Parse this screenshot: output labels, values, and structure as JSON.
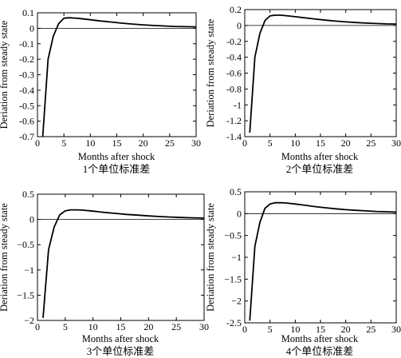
{
  "chart_data": [
    {
      "type": "line",
      "x": [
        1,
        2,
        3,
        4,
        5,
        6,
        7,
        8,
        10,
        12,
        14,
        16,
        18,
        20,
        22,
        24,
        26,
        28,
        30
      ],
      "series": [
        {
          "values": [
            -0.7,
            -0.2,
            -0.05,
            0.03,
            0.065,
            0.068,
            0.066,
            0.063,
            0.055,
            0.047,
            0.04,
            0.033,
            0.027,
            0.022,
            0.018,
            0.015,
            0.012,
            0.01,
            0.009
          ]
        }
      ],
      "xlim": [
        0,
        30
      ],
      "ylim": [
        -0.7,
        0.1
      ],
      "xticks": [
        0,
        5,
        10,
        15,
        20,
        25,
        30
      ],
      "yticks": [
        -0.7,
        -0.6,
        -0.5,
        -0.4,
        -0.3,
        -0.2,
        -0.1,
        0,
        0.1
      ],
      "ytick_labels": [
        "-0.7",
        "-0.6",
        "-0.5",
        "-0.4",
        "-0.3",
        "-0.2",
        "-0.1",
        "0",
        "0.1"
      ],
      "xlabel": "Months after shock",
      "ylabel": "Deriation from steady state",
      "caption": "1个单位标准差",
      "zero_line": true
    },
    {
      "type": "line",
      "x": [
        1,
        2,
        3,
        4,
        5,
        6,
        7,
        8,
        10,
        12,
        14,
        16,
        18,
        20,
        22,
        24,
        26,
        28,
        30
      ],
      "series": [
        {
          "values": [
            -1.35,
            -0.4,
            -0.1,
            0.06,
            0.12,
            0.13,
            0.13,
            0.125,
            0.11,
            0.095,
            0.08,
            0.067,
            0.055,
            0.045,
            0.037,
            0.03,
            0.025,
            0.02,
            0.018
          ]
        }
      ],
      "xlim": [
        0,
        30
      ],
      "ylim": [
        -1.4,
        0.2
      ],
      "xticks": [
        0,
        5,
        10,
        15,
        20,
        25,
        30
      ],
      "yticks": [
        -1.4,
        -1.2,
        -1.0,
        -0.8,
        -0.6,
        -0.4,
        -0.2,
        0,
        0.2
      ],
      "ytick_labels": [
        "-1.4",
        "-1.2",
        "-1",
        "-0.8",
        "-0.6",
        "-0.4",
        "-0.2",
        "0",
        "0.2"
      ],
      "xlabel": "Months after shock",
      "ylabel": "Deriation from steady state",
      "caption": "2个单位标准差",
      "zero_line": true
    },
    {
      "type": "line",
      "x": [
        1,
        2,
        3,
        4,
        5,
        6,
        7,
        8,
        10,
        12,
        14,
        16,
        18,
        20,
        22,
        24,
        26,
        28,
        30
      ],
      "series": [
        {
          "values": [
            -1.95,
            -0.6,
            -0.15,
            0.09,
            0.17,
            0.19,
            0.19,
            0.185,
            0.165,
            0.14,
            0.12,
            0.1,
            0.085,
            0.07,
            0.057,
            0.047,
            0.038,
            0.031,
            0.027
          ]
        }
      ],
      "xlim": [
        0,
        30
      ],
      "ylim": [
        -2,
        0.5
      ],
      "xticks": [
        0,
        5,
        10,
        15,
        20,
        25,
        30
      ],
      "yticks": [
        -2,
        -1.5,
        -1,
        -0.5,
        0,
        0.5
      ],
      "ytick_labels": [
        "−2",
        "−1.5",
        "−1",
        "−0.5",
        "0",
        "0.5"
      ],
      "xlabel": "Months after shock",
      "ylabel": "Deriation from steady state",
      "caption": "3个单位标准差",
      "zero_line": true
    },
    {
      "type": "line",
      "x": [
        1,
        2,
        3,
        4,
        5,
        6,
        7,
        8,
        10,
        12,
        14,
        16,
        18,
        20,
        22,
        24,
        26,
        28,
        30
      ],
      "series": [
        {
          "values": [
            -2.45,
            -0.75,
            -0.2,
            0.12,
            0.22,
            0.25,
            0.25,
            0.245,
            0.22,
            0.19,
            0.16,
            0.135,
            0.11,
            0.09,
            0.075,
            0.062,
            0.05,
            0.042,
            0.036
          ]
        }
      ],
      "xlim": [
        0,
        30
      ],
      "ylim": [
        -2.5,
        0.5
      ],
      "xticks": [
        0,
        5,
        10,
        15,
        20,
        25,
        30
      ],
      "yticks": [
        -2.5,
        -2,
        -1.5,
        -1,
        -0.5,
        0,
        0.5
      ],
      "ytick_labels": [
        "-2.5",
        "−2",
        "−1.5",
        "−1",
        "−0.5",
        "0",
        "0.5"
      ],
      "xlabel": "Months after shock",
      "ylabel": "Deriation from steady state",
      "caption": "4个单位标准差",
      "zero_line": true
    }
  ]
}
